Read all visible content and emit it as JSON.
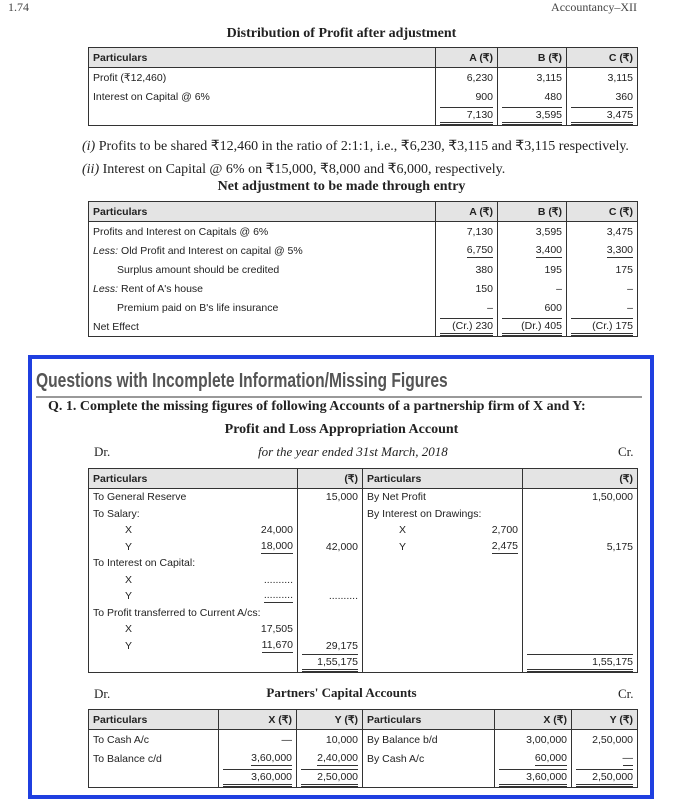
{
  "header": {
    "page_number": "1.74",
    "book_title": "Accountancy–XII"
  },
  "table1": {
    "title": "Distribution of Profit after adjustment",
    "columns": [
      "Particulars",
      "A (₹)",
      "B (₹)",
      "C (₹)"
    ],
    "rows": [
      [
        "Profit (₹12,460)",
        "6,230",
        "3,115",
        "3,115"
      ],
      [
        "Interest on Capital @ 6%",
        "900",
        "480",
        "360"
      ],
      [
        "",
        "7,130",
        "3,595",
        "3,475"
      ]
    ]
  },
  "notes": [
    {
      "num": "(i)",
      "text": "Profits to be shared ₹12,460 in the ratio of 2:1:1, i.e., ₹6,230, ₹3,115 and ₹3,115 respectively."
    },
    {
      "num": "(ii)",
      "text": "Interest on Capital @ 6% on ₹15,000, ₹8,000 and ₹6,000, respectively."
    }
  ],
  "table2": {
    "title": "Net adjustment to be made through entry",
    "columns": [
      "Particulars",
      "A (₹)",
      "B (₹)",
      "C (₹)"
    ],
    "rows": [
      [
        "Profits and Interest on Capitals @ 6%",
        "7,130",
        "3,595",
        "3,475"
      ],
      [
        "Less: Old Profit and Interest on capital @ 5%",
        "6,750",
        "3,400",
        "3,300"
      ],
      [
        "Surplus amount should be credited",
        "380",
        "195",
        "175"
      ],
      [
        "Less: Rent of A's house",
        "150",
        "–",
        "–"
      ],
      [
        "Premium paid on B's life insurance",
        "–",
        "600",
        "–"
      ],
      [
        "Net Effect",
        "(Cr.) 230",
        "(Dr.) 405",
        "(Cr.) 175"
      ]
    ]
  },
  "section": {
    "heading": "Questions with Incomplete Information/Missing Figures",
    "question": "Q. 1.  Complete the missing figures of following Accounts of a partnership firm of X and Y:"
  },
  "pl_account": {
    "title": "Profit and Loss Appropriation Account",
    "dr": "Dr.",
    "cr": "Cr.",
    "period": "for the year ended 31st March, 2018",
    "columns": [
      "Particulars",
      "(₹)",
      "Particulars",
      "(₹)"
    ],
    "rows": [
      [
        "To General Reserve",
        "",
        "15,000",
        "By Net Profit",
        "",
        "1,50,000"
      ],
      [
        "To Salary:",
        "",
        "",
        "By Interest on Drawings:",
        "",
        ""
      ],
      [
        "X",
        "24,000",
        "",
        "X",
        "2,700",
        ""
      ],
      [
        "Y",
        "18,000",
        "42,000",
        "Y",
        "2,475",
        "5,175"
      ],
      [
        "To Interest on Capital:",
        "",
        "",
        "",
        "",
        ""
      ],
      [
        "X",
        "..........",
        "",
        "",
        "",
        ""
      ],
      [
        "Y",
        "..........",
        "..........",
        "",
        "",
        ""
      ],
      [
        "To Profit transferred to Current A/cs:",
        "",
        "",
        "",
        "",
        ""
      ],
      [
        "X",
        "17,505",
        "",
        "",
        "",
        ""
      ],
      [
        "Y",
        "11,670",
        "29,175",
        "",
        "",
        ""
      ],
      [
        "",
        "",
        "1,55,175",
        "",
        "",
        "1,55,175"
      ]
    ]
  },
  "capital_accounts": {
    "title": "Partners' Capital Accounts",
    "dr": "Dr.",
    "cr": "Cr.",
    "columns": [
      "Particulars",
      "X (₹)",
      "Y (₹)",
      "Particulars",
      "X (₹)",
      "Y (₹)"
    ],
    "rows": [
      [
        "To Cash A/c",
        "—",
        "10,000",
        "By Balance b/d",
        "3,00,000",
        "2,50,000"
      ],
      [
        "To Balance c/d",
        "3,60,000",
        "2,40,000",
        "By Cash A/c",
        "60,000",
        "—"
      ],
      [
        "",
        "3,60,000",
        "2,50,000",
        "",
        "3,60,000",
        "2,50,000"
      ]
    ]
  },
  "colors": {
    "box_border": "#1f3fe0",
    "header_fill": "#e4e4e4",
    "heading_text": "#555555"
  }
}
